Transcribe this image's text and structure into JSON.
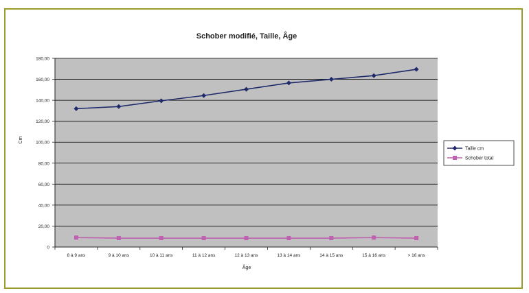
{
  "chart_data": {
    "type": "line",
    "title": "Schober modifié, Taille, Âge",
    "xlabel": "Âge",
    "ylabel": "Cm",
    "categories": [
      "8 à 9 ans",
      "9 à 10 ans",
      "10 à 11 ans",
      "11 à 12 ans",
      "12 à 13 ans",
      "13 à 14 ans",
      "14 à 15 ans",
      "15 à 16 ans",
      "> 16 ans"
    ],
    "ylim": [
      0,
      180
    ],
    "ytick_step": 20,
    "ytick_labels": [
      "0",
      "20,00",
      "40,00",
      "60,00",
      "80,00",
      "100,00",
      "120,00",
      "140,00",
      "160,00",
      "180,00"
    ],
    "grid": true,
    "legend_position": "right",
    "plot_background": "#c0c0c0",
    "series": [
      {
        "name": "Taille cm",
        "color": "#1f2a6b",
        "marker": "diamond",
        "values": [
          132,
          134,
          139.5,
          144.5,
          150.5,
          156.5,
          160,
          163.5,
          169.5
        ]
      },
      {
        "name": "Schober total",
        "color": "#c060b0",
        "marker": "square",
        "values": [
          9,
          8.5,
          8.5,
          8.5,
          8.5,
          8.5,
          8.5,
          9,
          8.5
        ]
      }
    ]
  }
}
